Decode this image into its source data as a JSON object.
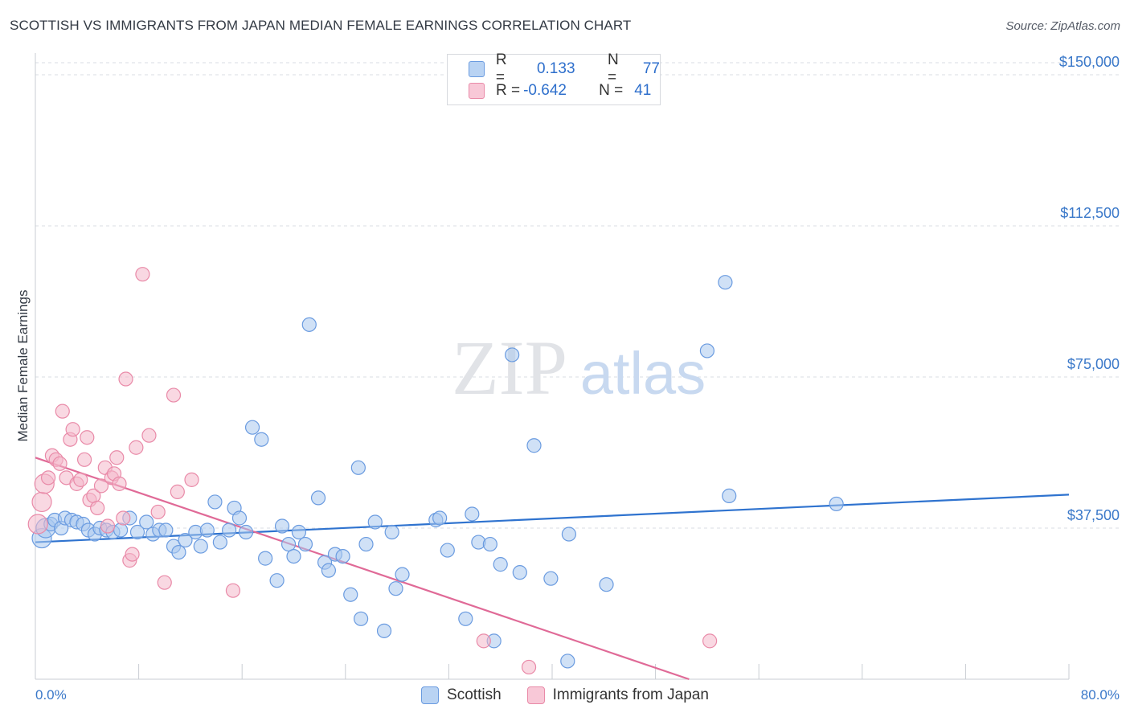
{
  "title": "SCOTTISH VS IMMIGRANTS FROM JAPAN MEDIAN FEMALE EARNINGS CORRELATION CHART",
  "source": "Source: ZipAtlas.com",
  "watermark": {
    "zip": "ZIP",
    "atlas": "atlas"
  },
  "colors": {
    "blue_fill": "#a9c8ef",
    "blue_stroke": "#6a9be0",
    "blue_line": "#2f73cf",
    "pink_fill": "#f4b8cb",
    "pink_stroke": "#e98aa8",
    "pink_line": "#e06a97",
    "axis_text": "#3a78c9",
    "grid": "#d9dde3"
  },
  "legend": {
    "rows": [
      {
        "r_label": "R =",
        "r_value": " 0.133",
        "n_label": "N =",
        "n_value": "77",
        "series": "blue"
      },
      {
        "r_label": "R =",
        "r_value": "-0.642",
        "n_label": "N =",
        "n_value": "41",
        "series": "pink"
      }
    ]
  },
  "bottom_legend": [
    "Scottish",
    "Immigrants from Japan"
  ],
  "chart_data": {
    "type": "scatter",
    "title": "SCOTTISH VS IMMIGRANTS FROM JAPAN MEDIAN FEMALE EARNINGS CORRELATION CHART",
    "xlabel": "",
    "ylabel": "Median Female Earnings",
    "xlim": [
      0,
      80
    ],
    "ylim": [
      0,
      153000
    ],
    "x_tick_labels": [
      "0.0%",
      "80.0%"
    ],
    "y_ticks": [
      {
        "value": 37500,
        "label": "$37,500"
      },
      {
        "value": 75000,
        "label": "$75,000"
      },
      {
        "value": 112500,
        "label": "$112,500"
      },
      {
        "value": 150000,
        "label": "$150,000"
      }
    ],
    "series": [
      {
        "name": "Scottish",
        "color": "blue",
        "points": [
          [
            0.5,
            35000
          ],
          [
            0.8,
            37500
          ],
          [
            1.2,
            38500
          ],
          [
            1.5,
            39500
          ],
          [
            2.0,
            37500
          ],
          [
            2.3,
            40000
          ],
          [
            2.8,
            39500
          ],
          [
            3.2,
            39000
          ],
          [
            3.7,
            38500
          ],
          [
            4.1,
            37000
          ],
          [
            4.6,
            36000
          ],
          [
            5.0,
            37500
          ],
          [
            5.5,
            37000
          ],
          [
            6.0,
            36500
          ],
          [
            6.6,
            37000
          ],
          [
            7.3,
            40000
          ],
          [
            7.9,
            36500
          ],
          [
            8.6,
            39000
          ],
          [
            9.1,
            36000
          ],
          [
            9.6,
            37000
          ],
          [
            10.1,
            37000
          ],
          [
            10.7,
            33000
          ],
          [
            11.1,
            31500
          ],
          [
            11.6,
            34500
          ],
          [
            12.4,
            36500
          ],
          [
            12.8,
            33000
          ],
          [
            13.3,
            37000
          ],
          [
            13.9,
            44000
          ],
          [
            14.3,
            34000
          ],
          [
            15.0,
            37000
          ],
          [
            15.4,
            42500
          ],
          [
            15.8,
            40000
          ],
          [
            16.3,
            36500
          ],
          [
            16.8,
            62500
          ],
          [
            17.5,
            59500
          ],
          [
            17.8,
            30000
          ],
          [
            18.7,
            24500
          ],
          [
            19.1,
            38000
          ],
          [
            19.6,
            33500
          ],
          [
            20.0,
            30500
          ],
          [
            20.4,
            36500
          ],
          [
            20.9,
            33500
          ],
          [
            21.2,
            88000
          ],
          [
            21.9,
            45000
          ],
          [
            22.4,
            29000
          ],
          [
            22.7,
            27000
          ],
          [
            23.2,
            31000
          ],
          [
            23.8,
            30500
          ],
          [
            24.4,
            21000
          ],
          [
            25.0,
            52500
          ],
          [
            25.2,
            15000
          ],
          [
            25.6,
            33500
          ],
          [
            26.3,
            39000
          ],
          [
            27.0,
            12000
          ],
          [
            27.6,
            36500
          ],
          [
            27.9,
            22500
          ],
          [
            28.4,
            26000
          ],
          [
            31.0,
            39500
          ],
          [
            31.3,
            40000
          ],
          [
            31.9,
            32000
          ],
          [
            33.3,
            15000
          ],
          [
            33.8,
            41000
          ],
          [
            34.3,
            34000
          ],
          [
            35.2,
            33500
          ],
          [
            35.5,
            9500
          ],
          [
            36.0,
            28500
          ],
          [
            36.9,
            80500
          ],
          [
            37.5,
            26500
          ],
          [
            38.6,
            58000
          ],
          [
            39.9,
            25000
          ],
          [
            41.2,
            4500
          ],
          [
            41.3,
            36000
          ],
          [
            44.2,
            23500
          ],
          [
            52.0,
            81500
          ],
          [
            53.7,
            45500
          ],
          [
            53.4,
            98500
          ],
          [
            62.0,
            43500
          ]
        ]
      },
      {
        "name": "Immigrants from Japan",
        "color": "pink",
        "points": [
          [
            0.2,
            38500
          ],
          [
            0.5,
            44000
          ],
          [
            0.7,
            48500
          ],
          [
            1.0,
            50000
          ],
          [
            1.3,
            55500
          ],
          [
            1.6,
            54500
          ],
          [
            1.9,
            53500
          ],
          [
            2.1,
            66500
          ],
          [
            2.4,
            50000
          ],
          [
            2.7,
            59500
          ],
          [
            2.9,
            62000
          ],
          [
            3.2,
            48500
          ],
          [
            3.5,
            49500
          ],
          [
            3.8,
            54500
          ],
          [
            4.0,
            60000
          ],
          [
            4.2,
            44500
          ],
          [
            4.5,
            45500
          ],
          [
            4.8,
            42500
          ],
          [
            5.1,
            48000
          ],
          [
            5.4,
            52500
          ],
          [
            5.6,
            38000
          ],
          [
            5.9,
            50000
          ],
          [
            6.1,
            51000
          ],
          [
            6.3,
            55000
          ],
          [
            6.5,
            48500
          ],
          [
            6.8,
            40000
          ],
          [
            7.0,
            74500
          ],
          [
            7.3,
            29500
          ],
          [
            7.5,
            31000
          ],
          [
            7.8,
            57500
          ],
          [
            8.3,
            100500
          ],
          [
            8.8,
            60500
          ],
          [
            9.5,
            41500
          ],
          [
            10.0,
            24000
          ],
          [
            10.7,
            70500
          ],
          [
            11.0,
            46500
          ],
          [
            12.1,
            49500
          ],
          [
            15.3,
            22000
          ],
          [
            34.7,
            9500
          ],
          [
            38.2,
            3000
          ],
          [
            52.2,
            9500
          ]
        ]
      }
    ],
    "trend_lines": [
      {
        "series": "Scottish",
        "x": [
          0,
          80
        ],
        "y": [
          34000,
          45800
        ]
      },
      {
        "series": "Immigrants from Japan",
        "x": [
          0,
          50.6
        ],
        "y": [
          55000,
          0
        ]
      }
    ]
  }
}
